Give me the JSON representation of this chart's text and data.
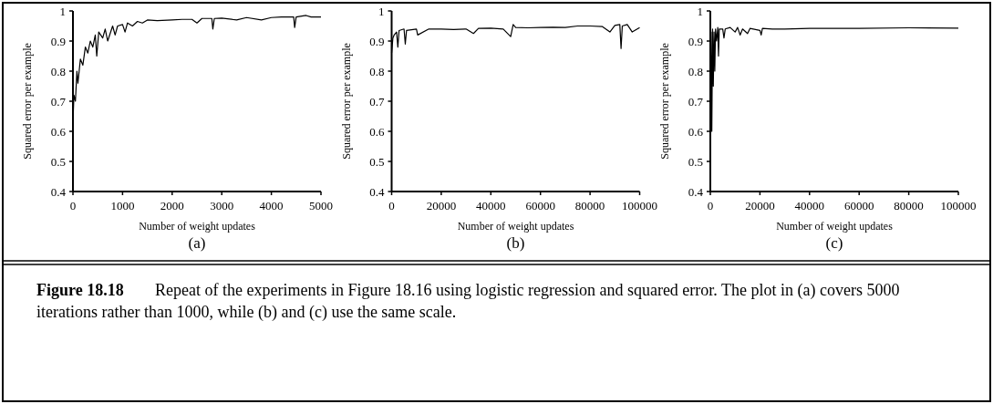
{
  "chart_data": [
    {
      "type": "line",
      "title": "(a)",
      "xlabel": "Number of weight updates",
      "ylabel": "Squared error per example",
      "color": "#000000",
      "xlim": [
        0,
        5000
      ],
      "xticks": [
        0,
        1000,
        2000,
        3000,
        4000,
        5000
      ],
      "ylim": [
        0.4,
        1
      ],
      "yticks": [
        0.4,
        0.5,
        0.6,
        0.7,
        0.8,
        0.9,
        1
      ],
      "x": [
        0,
        20,
        50,
        80,
        100,
        150,
        200,
        250,
        300,
        350,
        400,
        450,
        480,
        520,
        600,
        650,
        700,
        800,
        850,
        900,
        1000,
        1050,
        1100,
        1200,
        1300,
        1400,
        1500,
        1700,
        2000,
        2200,
        2400,
        2500,
        2600,
        2800,
        2820,
        2850,
        3000,
        3300,
        3500,
        3800,
        4000,
        4200,
        4450,
        4470,
        4500,
        4700,
        4800,
        5000
      ],
      "values": [
        0.63,
        0.72,
        0.7,
        0.8,
        0.76,
        0.84,
        0.82,
        0.88,
        0.86,
        0.9,
        0.88,
        0.92,
        0.85,
        0.93,
        0.91,
        0.94,
        0.9,
        0.95,
        0.92,
        0.95,
        0.955,
        0.93,
        0.96,
        0.95,
        0.965,
        0.96,
        0.97,
        0.968,
        0.97,
        0.972,
        0.972,
        0.96,
        0.975,
        0.975,
        0.94,
        0.975,
        0.976,
        0.97,
        0.978,
        0.97,
        0.978,
        0.98,
        0.98,
        0.945,
        0.98,
        0.985,
        0.98,
        0.98
      ],
      "annotations": [
        "Figure 18.18",
        "Repeat of the experiments in Figure 18.16 using logistic regression and squared error. The plot in (a) covers 5000 iterations rather than 1000, while (b) and (c) use the same scale."
      ]
    },
    {
      "type": "line",
      "title": "(b)",
      "xlabel": "Number of weight updates",
      "ylabel": "Squared error per example",
      "color": "#000000",
      "xlim": [
        0,
        100000
      ],
      "xticks": [
        0,
        20000,
        40000,
        60000,
        80000,
        100000
      ],
      "ylim": [
        0.4,
        1
      ],
      "yticks": [
        0.4,
        0.5,
        0.6,
        0.7,
        0.8,
        0.9,
        1
      ],
      "x": [
        0,
        500,
        1000,
        2000,
        2500,
        3000,
        5000,
        5500,
        6000,
        10000,
        10500,
        15000,
        20000,
        25000,
        30000,
        33000,
        35000,
        40000,
        45000,
        48000,
        49000,
        50000,
        55000,
        60000,
        65000,
        70000,
        75000,
        80000,
        85000,
        88000,
        90000,
        92000,
        92500,
        93000,
        95000,
        97000,
        100000
      ],
      "values": [
        0.86,
        0.91,
        0.92,
        0.93,
        0.88,
        0.935,
        0.94,
        0.89,
        0.935,
        0.94,
        0.92,
        0.94,
        0.94,
        0.938,
        0.94,
        0.925,
        0.942,
        0.943,
        0.94,
        0.915,
        0.955,
        0.945,
        0.944,
        0.945,
        0.946,
        0.945,
        0.95,
        0.95,
        0.948,
        0.93,
        0.952,
        0.955,
        0.875,
        0.95,
        0.955,
        0.93,
        0.945
      ]
    },
    {
      "type": "line",
      "title": "(c)",
      "xlabel": "Number of weight updates",
      "ylabel": "Squared error per example",
      "color": "#000000",
      "xlim": [
        0,
        100000
      ],
      "xticks": [
        0,
        20000,
        40000,
        60000,
        80000,
        100000
      ],
      "ylim": [
        0.4,
        1
      ],
      "yticks": [
        0.4,
        0.5,
        0.6,
        0.7,
        0.8,
        0.9,
        1
      ],
      "x": [
        0,
        300,
        600,
        900,
        1200,
        1500,
        1800,
        2100,
        2500,
        3000,
        3300,
        3600,
        5000,
        5500,
        6000,
        8000,
        10000,
        11000,
        12000,
        13000,
        15000,
        16000,
        20000,
        20500,
        21000,
        25000,
        30000,
        40000,
        60000,
        80000,
        100000
      ],
      "values": [
        0.55,
        0.93,
        0.6,
        0.94,
        0.75,
        0.93,
        0.8,
        0.94,
        0.9,
        0.945,
        0.85,
        0.94,
        0.94,
        0.91,
        0.94,
        0.945,
        0.93,
        0.945,
        0.92,
        0.94,
        0.925,
        0.942,
        0.935,
        0.92,
        0.942,
        0.94,
        0.94,
        0.942,
        0.942,
        0.944,
        0.943
      ]
    }
  ]
}
